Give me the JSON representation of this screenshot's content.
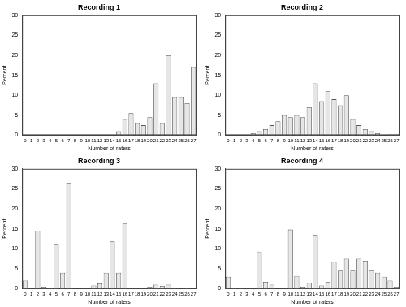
{
  "chart_data": [
    {
      "type": "bar",
      "title": "Recording 1",
      "x_label": "Number of raters",
      "y_label": "Percent",
      "categories": [
        "0",
        "1",
        "2",
        "3",
        "4",
        "5",
        "6",
        "7",
        "8",
        "9",
        "10",
        "11",
        "12",
        "13",
        "14",
        "15",
        "16",
        "17",
        "18",
        "19",
        "20",
        "21",
        "22",
        "23",
        "24",
        "25",
        "26",
        "27"
      ],
      "values": [
        0,
        0,
        0,
        0,
        0,
        0,
        0,
        0,
        0,
        0,
        0,
        0,
        0,
        0,
        0,
        1,
        4,
        5.5,
        3,
        2.5,
        4.5,
        13,
        3,
        20,
        9.5,
        9.5,
        8,
        17
      ],
      "color": "#e6e6e6",
      "ylim": [
        0,
        30
      ],
      "yticks": [
        0,
        5,
        10,
        15,
        20,
        25,
        30
      ],
      "grid": false
    },
    {
      "type": "bar",
      "title": "Recording 2",
      "x_label": "Number of raters",
      "y_label": "Percent",
      "categories": [
        "0",
        "1",
        "2",
        "3",
        "4",
        "5",
        "6",
        "7",
        "8",
        "9",
        "10",
        "11",
        "12",
        "13",
        "14",
        "15",
        "16",
        "17",
        "18",
        "19",
        "20",
        "21",
        "22",
        "23",
        "24",
        "25",
        "26",
        "27"
      ],
      "values": [
        0,
        0,
        0,
        0,
        0.5,
        1,
        1.5,
        2.5,
        3.5,
        5,
        4.5,
        5,
        4.5,
        7,
        13,
        8.5,
        11,
        9,
        7.5,
        10,
        4,
        2.5,
        1.5,
        1,
        0.5,
        0,
        0.2,
        0.2
      ],
      "color": "#e6e6e6",
      "ylim": [
        0,
        30
      ],
      "yticks": [
        0,
        5,
        10,
        15,
        20,
        25,
        30
      ],
      "grid": false
    },
    {
      "type": "bar",
      "title": "Recording 3",
      "x_label": "Number of raters",
      "y_label": "Percent",
      "categories": [
        "0",
        "1",
        "2",
        "3",
        "4",
        "5",
        "6",
        "7",
        "8",
        "9",
        "10",
        "11",
        "12",
        "13",
        "14",
        "15",
        "16",
        "17",
        "18",
        "19",
        "20",
        "21",
        "22",
        "23",
        "24",
        "25",
        "26",
        "27"
      ],
      "values": [
        2,
        0,
        14.5,
        0.5,
        0.3,
        11,
        4,
        26.5,
        0,
        0,
        0,
        0.8,
        1.3,
        4,
        11.8,
        4,
        16.3,
        0,
        0,
        0,
        0.5,
        1,
        0.7,
        1,
        0.3,
        0,
        0.2,
        0
      ],
      "color": "#e6e6e6",
      "ylim": [
        0,
        30
      ],
      "yticks": [
        0,
        5,
        10,
        15,
        20,
        25,
        30
      ],
      "grid": false
    },
    {
      "type": "bar",
      "title": "Recording 4",
      "x_label": "Number of raters",
      "y_label": "Percent",
      "categories": [
        "0",
        "1",
        "2",
        "3",
        "4",
        "5",
        "6",
        "7",
        "8",
        "9",
        "10",
        "11",
        "12",
        "13",
        "14",
        "15",
        "16",
        "17",
        "18",
        "19",
        "20",
        "21",
        "22",
        "23",
        "24",
        "25",
        "26",
        "27"
      ],
      "values": [
        3,
        0.2,
        0.2,
        0,
        0,
        9.3,
        1.7,
        1,
        0,
        0,
        14.8,
        3.2,
        0.5,
        1.5,
        13.5,
        0.8,
        1.7,
        6.7,
        4.5,
        7.5,
        4.5,
        7.5,
        7,
        4.5,
        4,
        3,
        2,
        0.5
      ],
      "color": "#e6e6e6",
      "ylim": [
        0,
        30
      ],
      "yticks": [
        0,
        5,
        10,
        15,
        20,
        25,
        30
      ],
      "grid": false
    }
  ]
}
